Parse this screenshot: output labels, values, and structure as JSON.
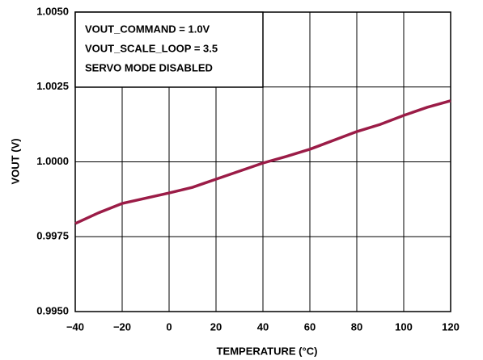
{
  "chart_data": {
    "type": "line",
    "xlabel": "TEMPERATURE (°C)",
    "ylabel": "VOUT (V)",
    "annotations": [
      "VOUT_COMMAND = 1.0V",
      "VOUT_SCALE_LOOP = 3.5",
      "SERVO MODE DISABLED"
    ],
    "x": [
      -40,
      -30,
      -20,
      0,
      10,
      20,
      40,
      50,
      60,
      80,
      90,
      100,
      110,
      120
    ],
    "series": [
      {
        "color": "#9b1c47",
        "values": [
          0.99794,
          0.9983,
          0.99861,
          0.99896,
          0.99915,
          0.99942,
          0.99996,
          1.00018,
          1.00042,
          1.00101,
          1.00125,
          1.00155,
          1.00182,
          1.00204
        ]
      }
    ],
    "xlim": [
      -40,
      120
    ],
    "xticks": [
      {
        "value": -40,
        "label": "−40"
      },
      {
        "value": -20,
        "label": "−20"
      },
      0,
      20,
      40,
      60,
      80,
      100,
      120
    ],
    "ylim": [
      0.995,
      1.005
    ],
    "yticks": [
      {
        "value": 0.995,
        "label": "0.9950"
      },
      {
        "value": 0.9975,
        "label": "0.9975"
      },
      {
        "value": 1.0,
        "label": "1.0000"
      },
      {
        "value": 1.0025,
        "label": "1.0025"
      },
      {
        "value": 1.005,
        "label": "1.0050"
      }
    ],
    "grid": true
  }
}
